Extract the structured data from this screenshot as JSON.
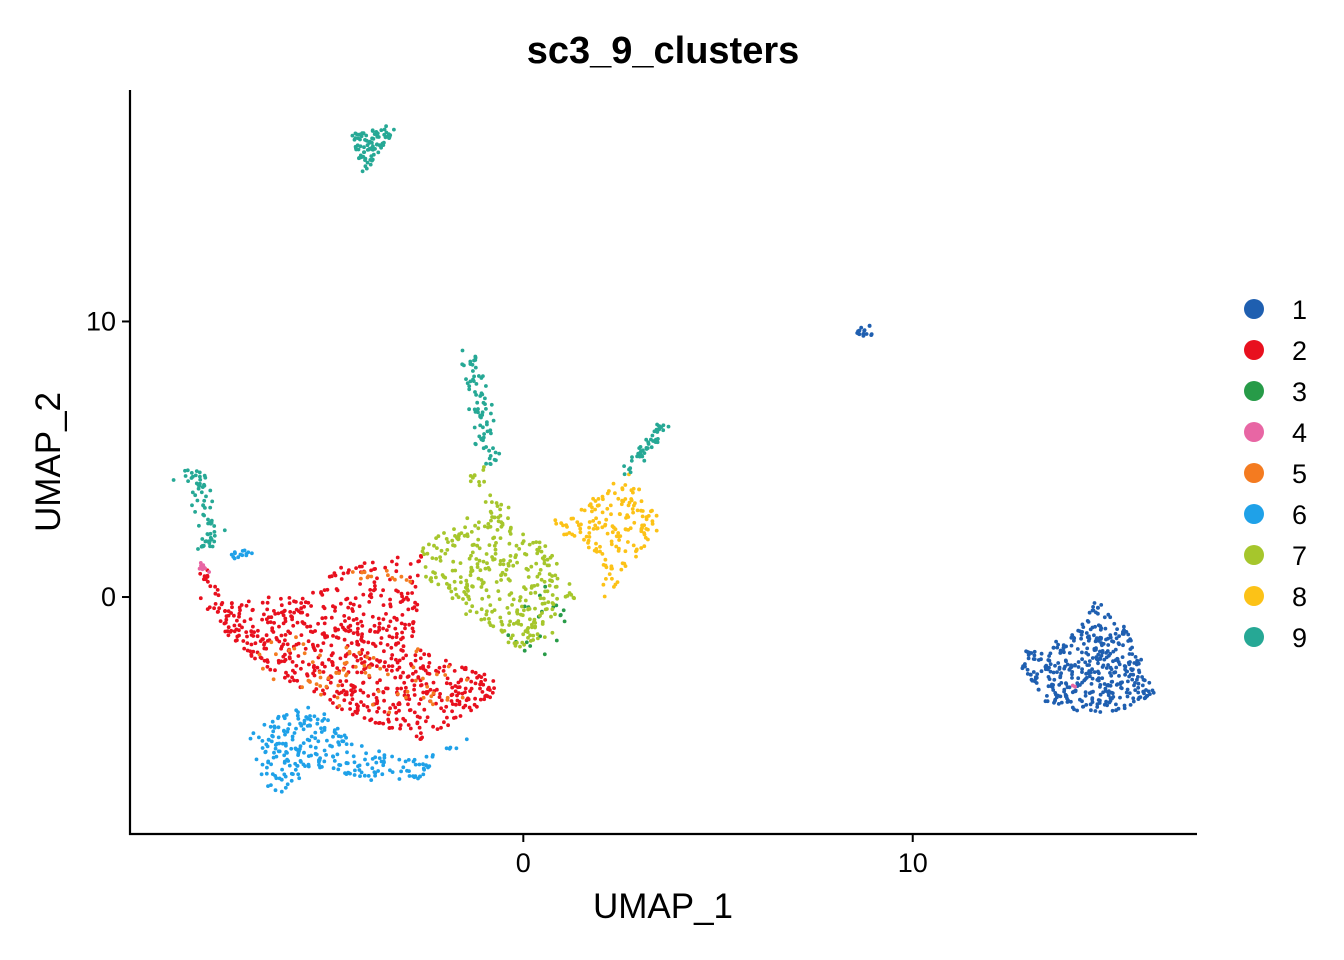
{
  "chart_data": {
    "type": "scatter",
    "title": "sc3_9_clusters",
    "xlabel": "UMAP_1",
    "ylabel": "UMAP_2",
    "xlim": [
      -10.1,
      17.3
    ],
    "ylim": [
      -8.6,
      18.4
    ],
    "xticks": [
      0,
      10
    ],
    "yticks": [
      0,
      10
    ],
    "grid": false,
    "legend_position": "right",
    "legend": [
      {
        "label": "1",
        "color": "#1F5FB0"
      },
      {
        "label": "2",
        "color": "#E8101E"
      },
      {
        "label": "3",
        "color": "#279B48"
      },
      {
        "label": "4",
        "color": "#E866A4"
      },
      {
        "label": "5",
        "color": "#F47B20"
      },
      {
        "label": "6",
        "color": "#1FA1E8"
      },
      {
        "label": "7",
        "color": "#A6C62C"
      },
      {
        "label": "8",
        "color": "#FCC217"
      },
      {
        "label": "9",
        "color": "#26A895"
      }
    ],
    "series": [
      {
        "name": "1",
        "color": "#1F5FB0",
        "regions": [
          {
            "kind": "polygon",
            "count": 420,
            "pts": [
              [
                12.8,
                -2.0
              ],
              [
                14.2,
                -1.3
              ],
              [
                14.7,
                -0.1
              ],
              [
                15.6,
                -1.3
              ],
              [
                16.2,
                -3.5
              ],
              [
                15.3,
                -4.2
              ],
              [
                13.5,
                -4.1
              ],
              [
                12.8,
                -2.6
              ]
            ]
          },
          {
            "kind": "ellipse",
            "count": 16,
            "cx": 8.8,
            "cy": 9.7,
            "rx": 0.28,
            "ry": 0.25
          }
        ]
      },
      {
        "name": "2",
        "color": "#E8101E",
        "regions": [
          {
            "kind": "polygon",
            "count": 700,
            "pts": [
              [
                -7.8,
                -0.2
              ],
              [
                -5.5,
                0.2
              ],
              [
                -2.7,
                0.8
              ],
              [
                -2.6,
                -2.0
              ],
              [
                -0.8,
                -2.8
              ],
              [
                -0.7,
                -3.6
              ],
              [
                -1.6,
                -4.4
              ],
              [
                -2.6,
                -5.2
              ],
              [
                -3.9,
                -4.6
              ],
              [
                -5.1,
                -3.8
              ],
              [
                -6.7,
                -2.5
              ],
              [
                -7.6,
                -1.4
              ],
              [
                -8.3,
                -0.5
              ]
            ]
          },
          {
            "kind": "line",
            "count": 30,
            "pts": [
              [
                -5.0,
                0.8
              ],
              [
                -3.0,
                1.2
              ],
              [
                -2.5,
                1.5
              ]
            ],
            "w": 0.25
          },
          {
            "kind": "line",
            "count": 22,
            "pts": [
              [
                -8.3,
                0.9
              ],
              [
                -7.9,
                0.0
              ],
              [
                -7.5,
                -0.8
              ]
            ],
            "w": 0.25
          }
        ]
      },
      {
        "name": "3",
        "color": "#279B48",
        "regions": [
          {
            "kind": "ellipse",
            "count": 20,
            "cx": 0.3,
            "cy": -0.8,
            "rx": 0.9,
            "ry": 1.4
          }
        ]
      },
      {
        "name": "4",
        "color": "#E866A4",
        "regions": [
          {
            "kind": "line",
            "count": 9,
            "pts": [
              [
                -8.4,
                1.3
              ],
              [
                -8.1,
                0.8
              ]
            ],
            "w": 0.12
          },
          {
            "kind": "ellipse",
            "count": 2,
            "cx": 14.1,
            "cy": -3.2,
            "rx": 0.1,
            "ry": 0.1
          }
        ]
      },
      {
        "name": "5",
        "color": "#F47B20",
        "regions": [
          {
            "kind": "ellipse",
            "count": 40,
            "cx": -3.4,
            "cy": -3.0,
            "rx": 2.2,
            "ry": 1.2
          },
          {
            "kind": "ellipse",
            "count": 30,
            "cx": -5.4,
            "cy": -2.3,
            "rx": 1.6,
            "ry": 1.0
          },
          {
            "kind": "line",
            "count": 14,
            "pts": [
              [
                -4.5,
                0.8
              ],
              [
                -2.8,
                0.6
              ]
            ],
            "w": 0.25
          }
        ]
      },
      {
        "name": "6",
        "color": "#1FA1E8",
        "regions": [
          {
            "kind": "polygon",
            "count": 260,
            "pts": [
              [
                -7.1,
                -4.8
              ],
              [
                -5.4,
                -3.8
              ],
              [
                -4.4,
                -5.3
              ],
              [
                -2.7,
                -5.9
              ],
              [
                -1.4,
                -5.1
              ],
              [
                -2.6,
                -6.6
              ],
              [
                -3.9,
                -6.7
              ],
              [
                -5.2,
                -6.2
              ],
              [
                -6.4,
                -7.3
              ],
              [
                -6.9,
                -6.1
              ]
            ]
          },
          {
            "kind": "ellipse",
            "count": 14,
            "cx": -7.2,
            "cy": 1.5,
            "rx": 0.3,
            "ry": 0.2
          }
        ]
      },
      {
        "name": "7",
        "color": "#A6C62C",
        "regions": [
          {
            "kind": "polygon",
            "count": 330,
            "pts": [
              [
                -2.7,
                1.8
              ],
              [
                -1.4,
                3.0
              ],
              [
                -0.6,
                2.9
              ],
              [
                0.7,
                1.8
              ],
              [
                1.4,
                0.0
              ],
              [
                0.7,
                -1.4
              ],
              [
                -0.1,
                -1.9
              ],
              [
                -1.8,
                -0.4
              ],
              [
                -2.5,
                0.6
              ]
            ]
          },
          {
            "kind": "line",
            "count": 24,
            "pts": [
              [
                -1.2,
                4.8
              ],
              [
                -0.9,
                3.6
              ],
              [
                -0.5,
                2.9
              ]
            ],
            "w": 0.3
          }
        ]
      },
      {
        "name": "8",
        "color": "#FCC217",
        "regions": [
          {
            "kind": "polygon",
            "count": 170,
            "pts": [
              [
                0.7,
                2.7
              ],
              [
                2.0,
                3.8
              ],
              [
                2.7,
                4.5
              ],
              [
                3.6,
                2.6
              ],
              [
                2.7,
                1.1
              ],
              [
                2.1,
                -0.1
              ],
              [
                1.9,
                1.6
              ],
              [
                1.0,
                2.3
              ]
            ]
          }
        ]
      },
      {
        "name": "9",
        "color": "#26A895",
        "regions": [
          {
            "kind": "polygon",
            "count": 90,
            "pts": [
              [
                -4.4,
                16.8
              ],
              [
                -3.2,
                17.2
              ],
              [
                -4.1,
                15.2
              ]
            ]
          },
          {
            "kind": "line",
            "count": 80,
            "pts": [
              [
                -1.4,
                8.8
              ],
              [
                -1.2,
                7.3
              ],
              [
                -1.0,
                6.5
              ],
              [
                -1.0,
                5.6
              ],
              [
                -0.9,
                4.8
              ]
            ],
            "w": 0.28
          },
          {
            "kind": "line",
            "count": 70,
            "pts": [
              [
                -8.7,
                4.4
              ],
              [
                -8.4,
                4.5
              ],
              [
                -8.2,
                3.3
              ],
              [
                -8.0,
                2.5
              ],
              [
                -8.2,
                1.7
              ]
            ],
            "w": 0.28
          },
          {
            "kind": "line",
            "count": 50,
            "pts": [
              [
                2.6,
                4.6
              ],
              [
                3.3,
                5.6
              ],
              [
                3.6,
                6.3
              ]
            ],
            "w": 0.2
          }
        ]
      }
    ]
  }
}
